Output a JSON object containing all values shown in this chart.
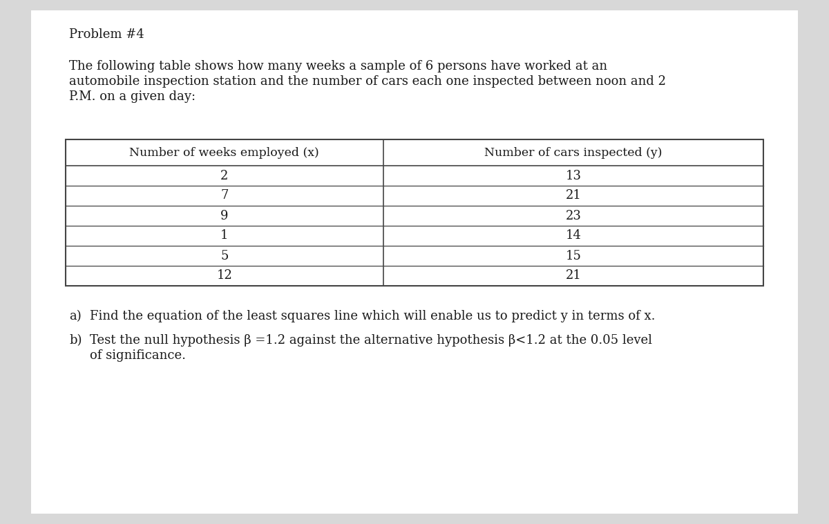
{
  "title": "Problem #4",
  "intro_text_lines": [
    "The following table shows how many weeks a sample of 6 persons have worked at an",
    "automobile inspection station and the number of cars each one inspected between noon and 2",
    "P.M. on a given day:"
  ],
  "col1_header": "Number of weeks employed (x)",
  "col2_header": "Number of cars inspected (y)",
  "x_values": [
    "2",
    "7",
    "9",
    "1",
    "5",
    "12"
  ],
  "y_values": [
    "13",
    "21",
    "23",
    "14",
    "15",
    "21"
  ],
  "question_a_label": "a)",
  "question_a_text": "Find the equation of the least squares line which will enable us to predict y in terms of x.",
  "question_b_label": "b)",
  "question_b_text": "Test the null hypothesis β =1.2 against the alternative hypothesis β<1.2 at the 0.05 level",
  "question_b_cont": "of significance.",
  "bg_color": "#d8d8d8",
  "page_color": "#ffffff",
  "text_color": "#1a1a1a",
  "table_line_color": "#444444",
  "font_size_title": 13,
  "font_size_body": 13,
  "font_size_table_header": 12.5,
  "font_size_table_data": 13
}
